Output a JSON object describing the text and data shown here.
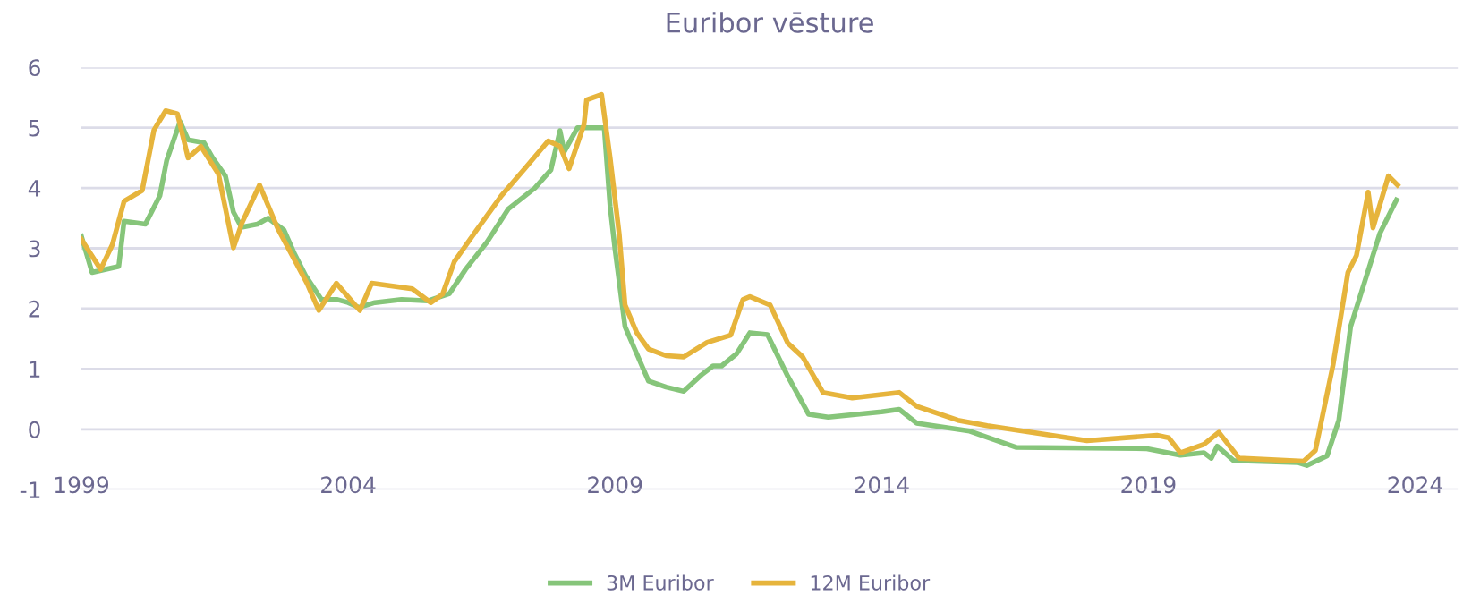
{
  "chart_data": {
    "type": "line",
    "title": "Euribor vēsture",
    "xlim": [
      1999,
      2024.8
    ],
    "xticks": [
      1999,
      2004,
      2009,
      2014,
      2019,
      2024
    ],
    "ylim": [
      -1,
      6
    ],
    "yticks": [
      -1,
      0,
      1,
      2,
      3,
      4,
      5,
      6
    ],
    "grid": "y",
    "legend": "bottom",
    "marker": "none",
    "line_style": "solid",
    "series": [
      {
        "name": "3M Euribor",
        "color": "#86c57a",
        "x": [
          1999.0,
          1999.2,
          1999.7,
          1999.8,
          2000.2,
          2000.47,
          2000.6,
          2000.85,
          2001.0,
          2001.3,
          2001.46,
          2001.7,
          2001.85,
          2002.0,
          2002.3,
          2002.5,
          2002.8,
          2003.0,
          2003.2,
          2003.5,
          2003.8,
          2004.0,
          2004.2,
          2004.5,
          2005.0,
          2005.5,
          2005.9,
          2006.2,
          2006.6,
          2007.0,
          2007.5,
          2007.8,
          2007.97,
          2008.05,
          2008.3,
          2008.8,
          2008.91,
          2009.0,
          2009.19,
          2009.41,
          2009.63,
          2009.96,
          2010.29,
          2010.62,
          2010.84,
          2011.0,
          2011.28,
          2011.53,
          2011.86,
          2012.24,
          2012.63,
          2013.0,
          2014.0,
          2014.33,
          2014.66,
          2015.65,
          2016.53,
          2018.95,
          2019.6,
          2020.04,
          2020.18,
          2020.29,
          2020.6,
          2021.8,
          2021.97,
          2022.35,
          2022.57,
          2022.79,
          2023.18,
          2023.34,
          2023.65
        ],
        "values": [
          3.2,
          2.6,
          2.7,
          3.45,
          3.4,
          3.87,
          4.46,
          5.1,
          4.8,
          4.75,
          4.5,
          4.2,
          3.6,
          3.35,
          3.4,
          3.5,
          3.3,
          2.9,
          2.55,
          2.15,
          2.15,
          2.1,
          2.02,
          2.1,
          2.15,
          2.13,
          2.25,
          2.65,
          3.1,
          3.65,
          4.0,
          4.3,
          4.95,
          4.6,
          5.0,
          5.0,
          3.7,
          3.0,
          1.7,
          1.25,
          0.8,
          0.7,
          0.63,
          0.9,
          1.05,
          1.05,
          1.25,
          1.6,
          1.57,
          0.88,
          0.25,
          0.2,
          0.29,
          0.33,
          0.1,
          -0.03,
          -0.3,
          -0.32,
          -0.43,
          -0.39,
          -0.48,
          -0.28,
          -0.52,
          -0.55,
          -0.6,
          -0.44,
          0.15,
          1.7,
          2.8,
          3.25,
          3.8
        ]
      },
      {
        "name": "12M Euribor",
        "color": "#e6b43c",
        "x": [
          1999.0,
          1999.36,
          1999.58,
          1999.8,
          2000.14,
          2000.36,
          2000.58,
          2000.8,
          2001.0,
          2001.24,
          2001.57,
          2001.85,
          2002.01,
          2002.34,
          2002.68,
          2003.23,
          2003.45,
          2003.78,
          2004.22,
          2004.44,
          2005.2,
          2005.55,
          2005.77,
          2005.99,
          2006.43,
          2006.87,
          2007.31,
          2007.75,
          2007.97,
          2008.14,
          2008.42,
          2008.47,
          2008.75,
          2008.91,
          2009.08,
          2009.19,
          2009.41,
          2009.63,
          2009.96,
          2010.29,
          2010.73,
          2011.17,
          2011.4,
          2011.53,
          2011.91,
          2012.24,
          2012.52,
          2012.9,
          2013.45,
          2014.33,
          2014.66,
          2015.43,
          2015.98,
          2017.85,
          2019.16,
          2019.38,
          2019.6,
          2020.04,
          2020.32,
          2020.7,
          2021.91,
          2022.13,
          2022.46,
          2022.74,
          2022.9,
          2023.12,
          2023.21,
          2023.5,
          2023.67
        ],
        "values": [
          3.15,
          2.65,
          3.06,
          3.78,
          3.96,
          4.96,
          5.28,
          5.23,
          4.5,
          4.69,
          4.23,
          3.01,
          3.42,
          4.05,
          3.33,
          2.42,
          1.97,
          2.42,
          1.97,
          2.42,
          2.33,
          2.1,
          2.24,
          2.78,
          3.33,
          3.87,
          4.32,
          4.78,
          4.69,
          4.32,
          5.05,
          5.46,
          5.55,
          4.5,
          3.24,
          2.06,
          1.6,
          1.33,
          1.22,
          1.2,
          1.44,
          1.56,
          2.15,
          2.2,
          2.06,
          1.43,
          1.2,
          0.61,
          0.52,
          0.61,
          0.38,
          0.15,
          0.06,
          -0.19,
          -0.1,
          -0.14,
          -0.39,
          -0.25,
          -0.05,
          -0.48,
          -0.53,
          -0.35,
          1.06,
          2.6,
          2.88,
          3.93,
          3.34,
          4.2,
          4.05
        ]
      }
    ]
  }
}
